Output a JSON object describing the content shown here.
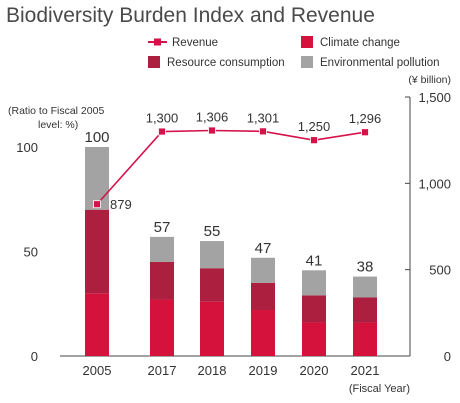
{
  "chart_data": {
    "type": "bar",
    "title": "Biodiversity Burden Index and Revenue",
    "categories": [
      "2005",
      "2017",
      "2018",
      "2019",
      "2020",
      "2021"
    ],
    "xlabel": "(Fiscal Year)",
    "ylabel": "(Ratio to Fiscal 2005 level: %)",
    "y2label": "(¥ billion)",
    "ylim": [
      0,
      100
    ],
    "y2lim": [
      0,
      1500
    ],
    "yticks": [
      "0",
      "50",
      "100"
    ],
    "y2ticks": [
      "0",
      "500",
      "1,000",
      "1,500"
    ],
    "stacked": true,
    "series": [
      {
        "name": "Climate change",
        "color": "#d4123c",
        "values": [
          30,
          27,
          26,
          22,
          16,
          16
        ]
      },
      {
        "name": "Resource consumption",
        "color": "#ad1f3e",
        "values": [
          40,
          18,
          16,
          13,
          13,
          12
        ]
      },
      {
        "name": "Environmental pollution",
        "color": "#a3a3a3",
        "values": [
          30,
          12,
          13,
          12,
          12,
          10
        ]
      }
    ],
    "totals": [
      "100",
      "57",
      "55",
      "47",
      "41",
      "38"
    ],
    "line_series": {
      "name": "Revenue",
      "axis": "right",
      "color": "#d6124a",
      "values": [
        879,
        1300,
        1306,
        1301,
        1250,
        1296
      ],
      "labels": [
        "879",
        "1,300",
        "1,306",
        "1,301",
        "1,250",
        "1,296"
      ]
    },
    "legend": {
      "placement": "top",
      "entries": [
        "Revenue",
        "Climate change",
        "Resource consumption",
        "Environmental pollution"
      ]
    },
    "grid": false
  }
}
